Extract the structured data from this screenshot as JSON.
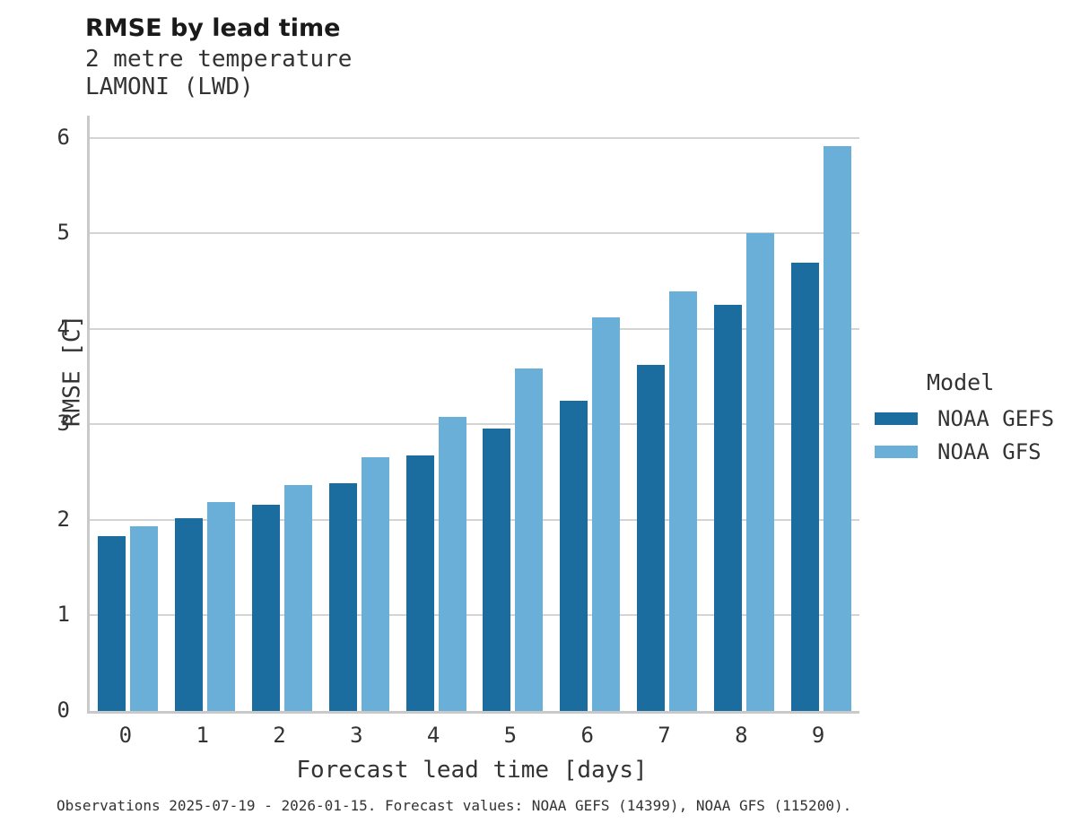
{
  "header": {
    "title": "RMSE by lead time",
    "subtitle_line1": "2 metre temperature",
    "subtitle_line2": "LAMONI (LWD)"
  },
  "chart_data": {
    "type": "bar",
    "title": "RMSE by lead time",
    "subtitle": [
      "2 metre temperature",
      "LAMONI (LWD)"
    ],
    "xlabel": "Forecast lead time [days]",
    "ylabel": "RMSE [C]",
    "categories": [
      "0",
      "1",
      "2",
      "3",
      "4",
      "5",
      "6",
      "7",
      "8",
      "9"
    ],
    "series": [
      {
        "name": "NOAA GEFS",
        "color": "#1a6d9e",
        "values": [
          1.83,
          2.02,
          2.16,
          2.38,
          2.67,
          2.96,
          3.25,
          3.62,
          4.25,
          4.69
        ]
      },
      {
        "name": "NOAA GFS",
        "color": "#69afd7",
        "values": [
          1.93,
          2.19,
          2.36,
          2.66,
          3.08,
          3.58,
          4.12,
          4.39,
          5.0,
          5.91
        ]
      }
    ],
    "ylim": [
      0,
      6.23
    ],
    "yticks": [
      0,
      1,
      2,
      3,
      4,
      5,
      6
    ],
    "grid": "horizontal",
    "legend_title": "Model",
    "legend_position": "right"
  },
  "legend": {
    "title": "Model",
    "items": [
      {
        "label": "NOAA GEFS",
        "color": "#1a6d9e"
      },
      {
        "label": "NOAA GFS",
        "color": "#69afd7"
      }
    ]
  },
  "footer": {
    "note": "Observations 2025-07-19 - 2026-01-15. Forecast values: NOAA GEFS (14399), NOAA GFS (115200)."
  }
}
